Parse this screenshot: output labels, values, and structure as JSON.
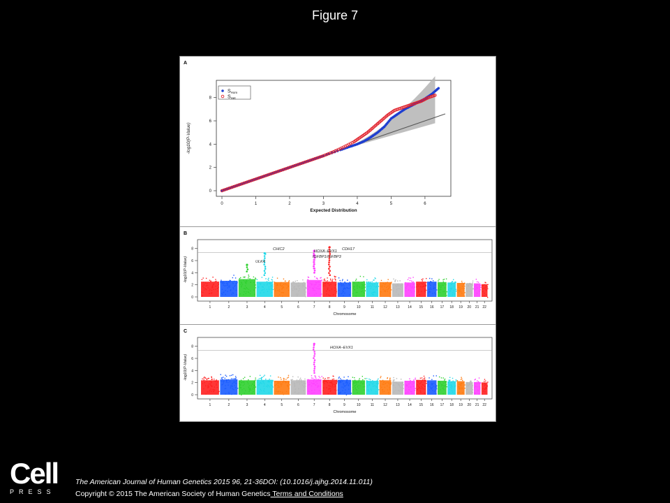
{
  "slide": {
    "title": "Figure 7"
  },
  "figure": {
    "panel_letters": [
      "A",
      "B",
      "C"
    ],
    "panel_a": {
      "xlabel": "Expected Distribution",
      "ylabel": "-log10(P-Value)",
      "x_ticks": [
        "0",
        "1",
        "2",
        "3",
        "4",
        "5",
        "6"
      ],
      "y_ticks": [
        "0",
        "2",
        "4",
        "6",
        "8"
      ],
      "legend": [
        {
          "symbol": "S",
          "sub": "Hom",
          "color": "#1f3fd0",
          "marker": "filled-circle"
        },
        {
          "symbol": "S",
          "sub": "Het",
          "color": "#e0202a",
          "marker": "open-circle"
        }
      ]
    },
    "panel_b": {
      "xlabel": "Chromosome",
      "ylabel": "-log10(P-Value)",
      "y_ticks": [
        "0",
        "2",
        "4",
        "6",
        "8"
      ],
      "chrom_ticks": [
        "1",
        "2",
        "3",
        "4",
        "5",
        "6",
        "7",
        "8",
        "9",
        "10",
        "11",
        "12",
        "13",
        "14",
        "15",
        "16",
        "17",
        "18",
        "19",
        "20",
        "21",
        "22"
      ],
      "annotations": [
        {
          "text": "CHIC2",
          "color": "#00c8e0"
        },
        {
          "text": "ULK4",
          "color": "#20a020"
        },
        {
          "text": "HOXA−EVX1",
          "color": "#e040e0"
        },
        {
          "text": "IGFBP1/IGFBP3",
          "color": "#e040e0"
        },
        {
          "text": "CDH17",
          "color": "#e02020"
        }
      ]
    },
    "panel_c": {
      "xlabel": "Chromosome",
      "ylabel": "-log10(P-Value)",
      "y_ticks": [
        "0",
        "2",
        "4",
        "6",
        "8"
      ],
      "chrom_ticks": [
        "1",
        "2",
        "3",
        "4",
        "5",
        "6",
        "7",
        "8",
        "9",
        "10",
        "11",
        "12",
        "13",
        "14",
        "15",
        "16",
        "17",
        "18",
        "19",
        "20",
        "21",
        "22"
      ],
      "annotations": [
        {
          "text": "HOXA−EVX1",
          "color": "#e040e0"
        }
      ]
    }
  },
  "chart_data": [
    {
      "type": "scatter",
      "title": "",
      "xlabel": "Expected Distribution",
      "ylabel": "-log10(P-Value)",
      "xlim": [
        0,
        6.6
      ],
      "ylim": [
        0,
        9
      ],
      "series": [
        {
          "name": "S Hom",
          "color": "#1f3fd0",
          "x": [
            0.0,
            0.5,
            1.0,
            1.5,
            2.0,
            2.5,
            3.0,
            3.5,
            3.8,
            4.0,
            4.2,
            4.4,
            4.6,
            4.8,
            5.0,
            5.2,
            5.4,
            5.6,
            5.8,
            6.0,
            6.2,
            6.4
          ],
          "y": [
            0.0,
            0.5,
            1.0,
            1.5,
            2.0,
            2.5,
            3.0,
            3.5,
            3.8,
            4.0,
            4.25,
            4.6,
            5.0,
            5.5,
            6.2,
            6.6,
            7.0,
            7.3,
            7.6,
            7.9,
            8.3,
            8.8
          ]
        },
        {
          "name": "S Het",
          "color": "#e0202a",
          "x": [
            0.0,
            0.5,
            1.0,
            1.5,
            2.0,
            2.5,
            3.0,
            3.3,
            3.6,
            3.9,
            4.1,
            4.3,
            4.5,
            4.7,
            4.9,
            5.1,
            5.3,
            5.5,
            5.7,
            5.9,
            6.1,
            6.3
          ],
          "y": [
            0.0,
            0.5,
            1.0,
            1.5,
            2.0,
            2.5,
            3.0,
            3.35,
            3.75,
            4.2,
            4.6,
            5.0,
            5.5,
            6.0,
            6.5,
            6.9,
            7.1,
            7.3,
            7.5,
            7.7,
            8.0,
            8.2
          ]
        }
      ]
    },
    {
      "type": "scatter",
      "title": "",
      "xlabel": "Chromosome",
      "ylabel": "-log10(P-Value)",
      "ylim": [
        0,
        9
      ],
      "categories": [
        "1",
        "2",
        "3",
        "4",
        "5",
        "6",
        "7",
        "8",
        "9",
        "10",
        "11",
        "12",
        "13",
        "14",
        "15",
        "16",
        "17",
        "18",
        "19",
        "20",
        "21",
        "22"
      ],
      "chromosome_colors": [
        "#ff2020",
        "#1a5cff",
        "#30d030",
        "#20d8e8",
        "#ff7a10",
        "#b8b8b8",
        "#ff40ff",
        "#ff2020",
        "#1a5cff",
        "#30d030",
        "#20d8e8",
        "#ff7a10",
        "#b8b8b8",
        "#ff40ff",
        "#ff2020",
        "#1a5cff",
        "#30d030",
        "#20d8e8",
        "#ff7a10",
        "#b8b8b8",
        "#ff40ff",
        "#ff2020"
      ],
      "typical_max": [
        3.6,
        3.8,
        4.2,
        3.6,
        3.5,
        3.4,
        4.0,
        3.6,
        3.4,
        3.6,
        3.4,
        3.5,
        3.2,
        3.4,
        3.6,
        3.6,
        3.5,
        3.4,
        3.3,
        3.2,
        3.2,
        3.0
      ],
      "significance_line": 7.3,
      "peaks": [
        {
          "chromosome": "4",
          "value": 7.2,
          "label": "CHIC2"
        },
        {
          "chromosome": "3",
          "value": 5.3,
          "label": "ULK4"
        },
        {
          "chromosome": "7",
          "value": 7.6,
          "label": "HOXA−EVX1"
        },
        {
          "chromosome": "7",
          "value": 6.9,
          "label": "IGFBP1/IGFBP3"
        },
        {
          "chromosome": "8",
          "value": 8.2,
          "label": "CDH17"
        }
      ]
    },
    {
      "type": "scatter",
      "title": "",
      "xlabel": "Chromosome",
      "ylabel": "-log10(P-Value)",
      "ylim": [
        0,
        9
      ],
      "categories": [
        "1",
        "2",
        "3",
        "4",
        "5",
        "6",
        "7",
        "8",
        "9",
        "10",
        "11",
        "12",
        "13",
        "14",
        "15",
        "16",
        "17",
        "18",
        "19",
        "20",
        "21",
        "22"
      ],
      "chromosome_colors": [
        "#ff2020",
        "#1a5cff",
        "#30d030",
        "#20d8e8",
        "#ff7a10",
        "#b8b8b8",
        "#ff40ff",
        "#ff2020",
        "#1a5cff",
        "#30d030",
        "#20d8e8",
        "#ff7a10",
        "#b8b8b8",
        "#ff40ff",
        "#ff2020",
        "#1a5cff",
        "#30d030",
        "#20d8e8",
        "#ff7a10",
        "#b8b8b8",
        "#ff40ff",
        "#ff2020"
      ],
      "typical_max": [
        3.4,
        3.6,
        3.4,
        3.5,
        3.3,
        3.4,
        3.6,
        3.5,
        3.5,
        3.4,
        3.3,
        3.4,
        3.1,
        3.3,
        3.5,
        3.4,
        3.3,
        3.2,
        3.2,
        3.0,
        3.0,
        2.9
      ],
      "significance_line": 7.3,
      "peaks": [
        {
          "chromosome": "7",
          "value": 8.4,
          "label": "HOXA−EVX1"
        }
      ]
    }
  ],
  "footer": {
    "logo_word": "Cell",
    "logo_sub": "PRESS",
    "citation": "The American Journal of Human Genetics 2015 96, 21-36DOI: (10.1016/j.ajhg.2014.11.011)",
    "copyright": "Copyright © 2015 The American Society of Human Genetics",
    "terms_link": " Terms and Conditions"
  }
}
